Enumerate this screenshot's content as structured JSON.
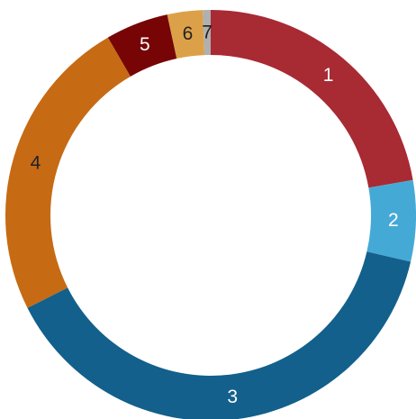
{
  "chart_data": {
    "type": "pie",
    "variant": "donut",
    "start_angle_deg": 0,
    "direction": "clockwise",
    "grid": false,
    "legend": "none",
    "slices": [
      {
        "label": "1",
        "value": 21.6,
        "color": "#a82a33",
        "label_color": "#ffffff"
      },
      {
        "label": "2",
        "value": 6.2,
        "color": "#45a9d6",
        "label_color": "#ffffff"
      },
      {
        "label": "3",
        "value": 37.8,
        "color": "#12608b",
        "label_color": "#ffffff"
      },
      {
        "label": "4",
        "value": 23.4,
        "color": "#c66a14",
        "label_color": "#222222"
      },
      {
        "label": "5",
        "value": 4.8,
        "color": "#770506",
        "label_color": "#ffffff"
      },
      {
        "label": "6",
        "value": 2.7,
        "color": "#dca148",
        "label_color": "#222222"
      },
      {
        "label": "7",
        "value": 0.6,
        "color": "#b0b0b0",
        "label_color": "#222222"
      }
    ]
  }
}
